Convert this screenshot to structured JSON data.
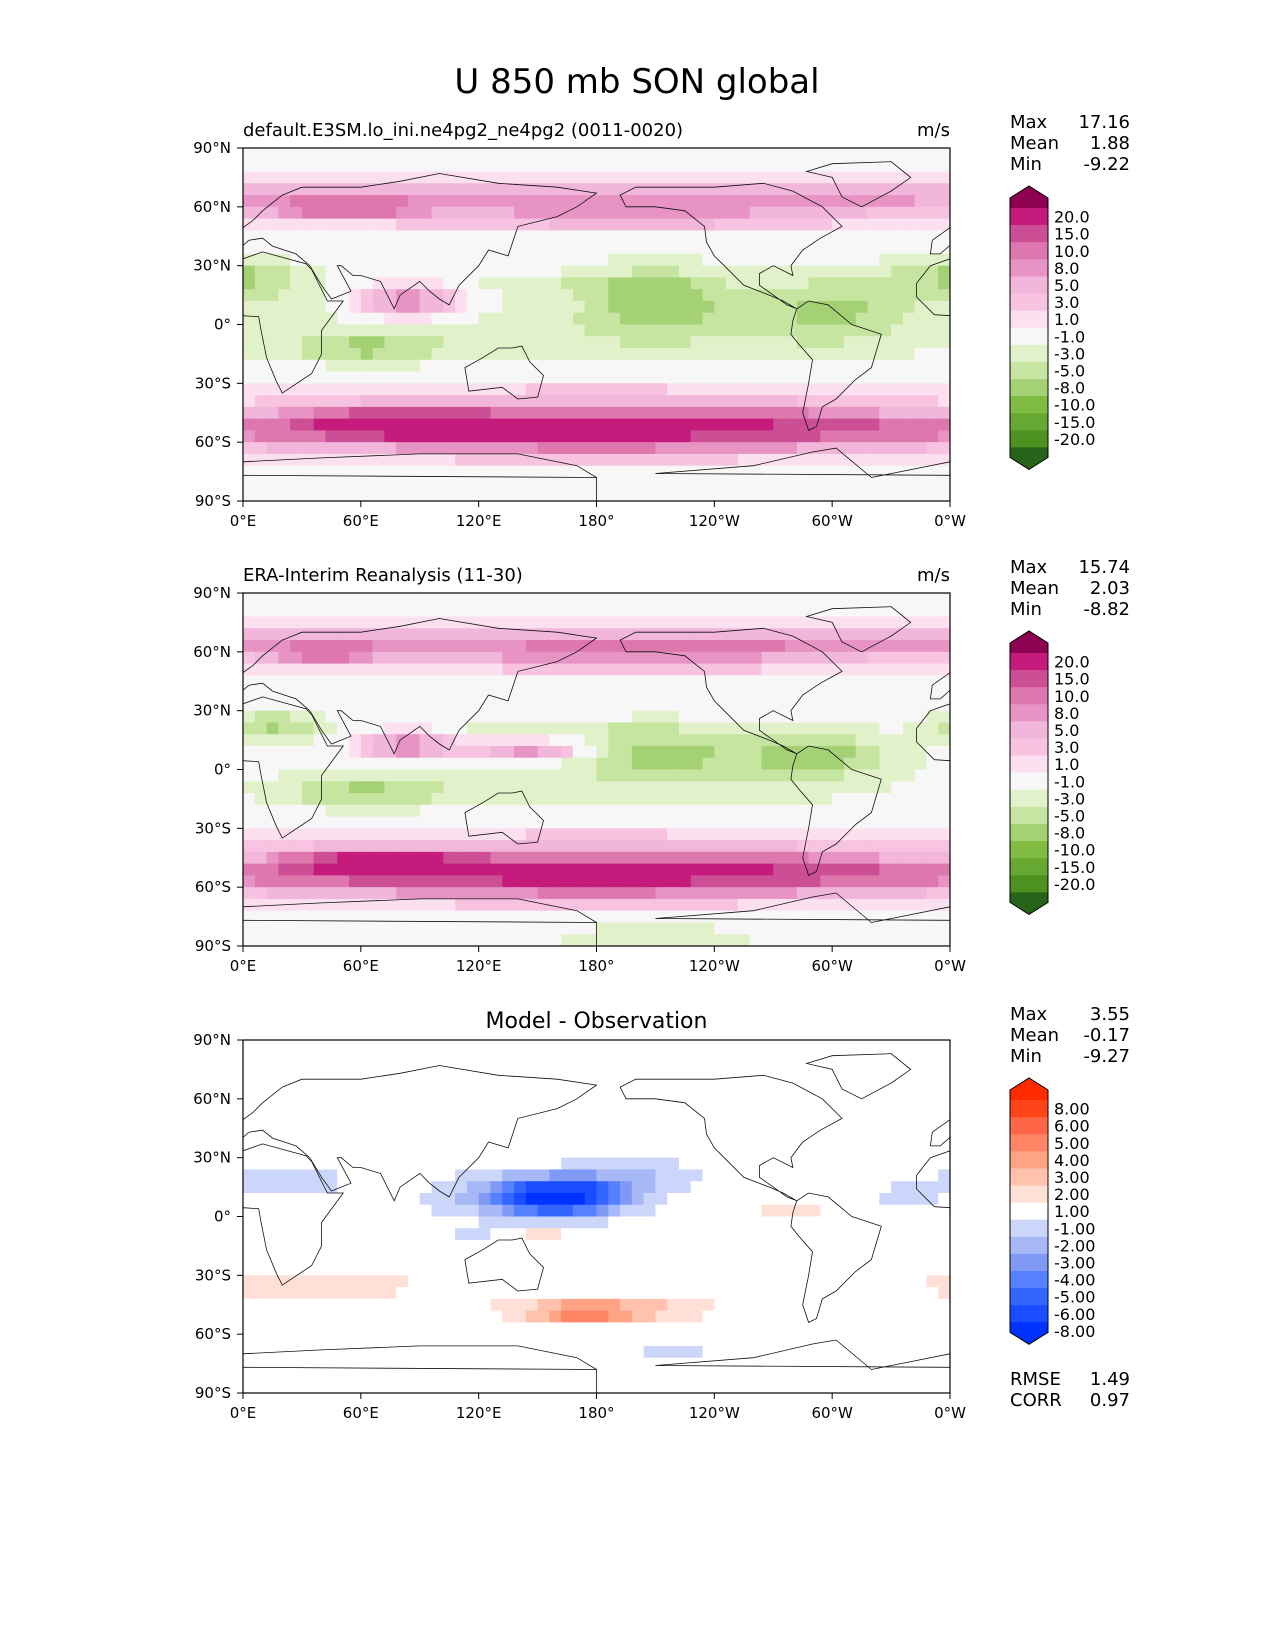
{
  "figure": {
    "title": "U 850 mb SON global"
  },
  "axes": {
    "x_ticks": [
      "0°E",
      "60°E",
      "120°E",
      "180°",
      "120°W",
      "60°W",
      "0°W"
    ],
    "y_ticks": [
      "90°N",
      "60°N",
      "30°N",
      "0°",
      "30°S",
      "60°S",
      "90°S"
    ]
  },
  "colors": {
    "pink_green": [
      "#276419",
      "#4d9221",
      "#66a832",
      "#7fbc41",
      "#a5d175",
      "#c6e5a0",
      "#e1f2cb",
      "#f7f7f7",
      "#fde0ef",
      "#f7c3e0",
      "#f1b6da",
      "#e794c5",
      "#de77ae",
      "#cc4f96",
      "#c51b7d",
      "#8e0152"
    ],
    "blue_red": [
      "#0033ff",
      "#1a4dff",
      "#3366ff",
      "#5580ff",
      "#8099f5",
      "#a6b8f5",
      "#ccd6fa",
      "#ffffff",
      "#ffe0d6",
      "#ffc2ad",
      "#ffa385",
      "#ff8566",
      "#ff6647",
      "#ff4419",
      "#ff2a00"
    ]
  },
  "chart_data": [
    {
      "type": "heatmap",
      "title_left": "default.E3SM.lo_ini.ne4pg2_ne4pg2 (0011-0020)",
      "title_center": "",
      "units": "m/s",
      "xlim": [
        0,
        360
      ],
      "ylim": [
        -90,
        90
      ],
      "stats": [
        {
          "label": "Max",
          "value": "17.16"
        },
        {
          "label": "Mean",
          "value": "1.88"
        },
        {
          "label": "Min",
          "value": "-9.22"
        }
      ],
      "colorbar_levels": [
        "20.0",
        "15.0",
        "10.0",
        "8.0",
        "5.0",
        "3.0",
        "1.0",
        "-1.0",
        "-3.0",
        "-5.0",
        "-8.0",
        "-10.0",
        "-15.0",
        "-20.0"
      ],
      "footer_stats": []
    },
    {
      "type": "heatmap",
      "title_left": "ERA-Interim Reanalysis (11-30)",
      "title_center": "",
      "units": "m/s",
      "xlim": [
        0,
        360
      ],
      "ylim": [
        -90,
        90
      ],
      "stats": [
        {
          "label": "Max",
          "value": "15.74"
        },
        {
          "label": "Mean",
          "value": "2.03"
        },
        {
          "label": "Min",
          "value": "-8.82"
        }
      ],
      "colorbar_levels": [
        "20.0",
        "15.0",
        "10.0",
        "8.0",
        "5.0",
        "3.0",
        "1.0",
        "-1.0",
        "-3.0",
        "-5.0",
        "-8.0",
        "-10.0",
        "-15.0",
        "-20.0"
      ],
      "footer_stats": []
    },
    {
      "type": "heatmap",
      "title_left": "",
      "title_center": "Model - Observation",
      "units": "",
      "xlim": [
        0,
        360
      ],
      "ylim": [
        -90,
        90
      ],
      "stats": [
        {
          "label": "Max",
          "value": "3.55"
        },
        {
          "label": "Mean",
          "value": "-0.17"
        },
        {
          "label": "Min",
          "value": "-9.27"
        }
      ],
      "colorbar_levels": [
        "8.00",
        "6.00",
        "5.00",
        "4.00",
        "3.00",
        "2.00",
        "1.00",
        "-1.00",
        "-2.00",
        "-3.00",
        "-4.00",
        "-5.00",
        "-6.00",
        "-8.00"
      ],
      "footer_stats": [
        {
          "label": "RMSE",
          "value": "1.49"
        },
        {
          "label": "CORR",
          "value": "0.97"
        }
      ]
    }
  ]
}
